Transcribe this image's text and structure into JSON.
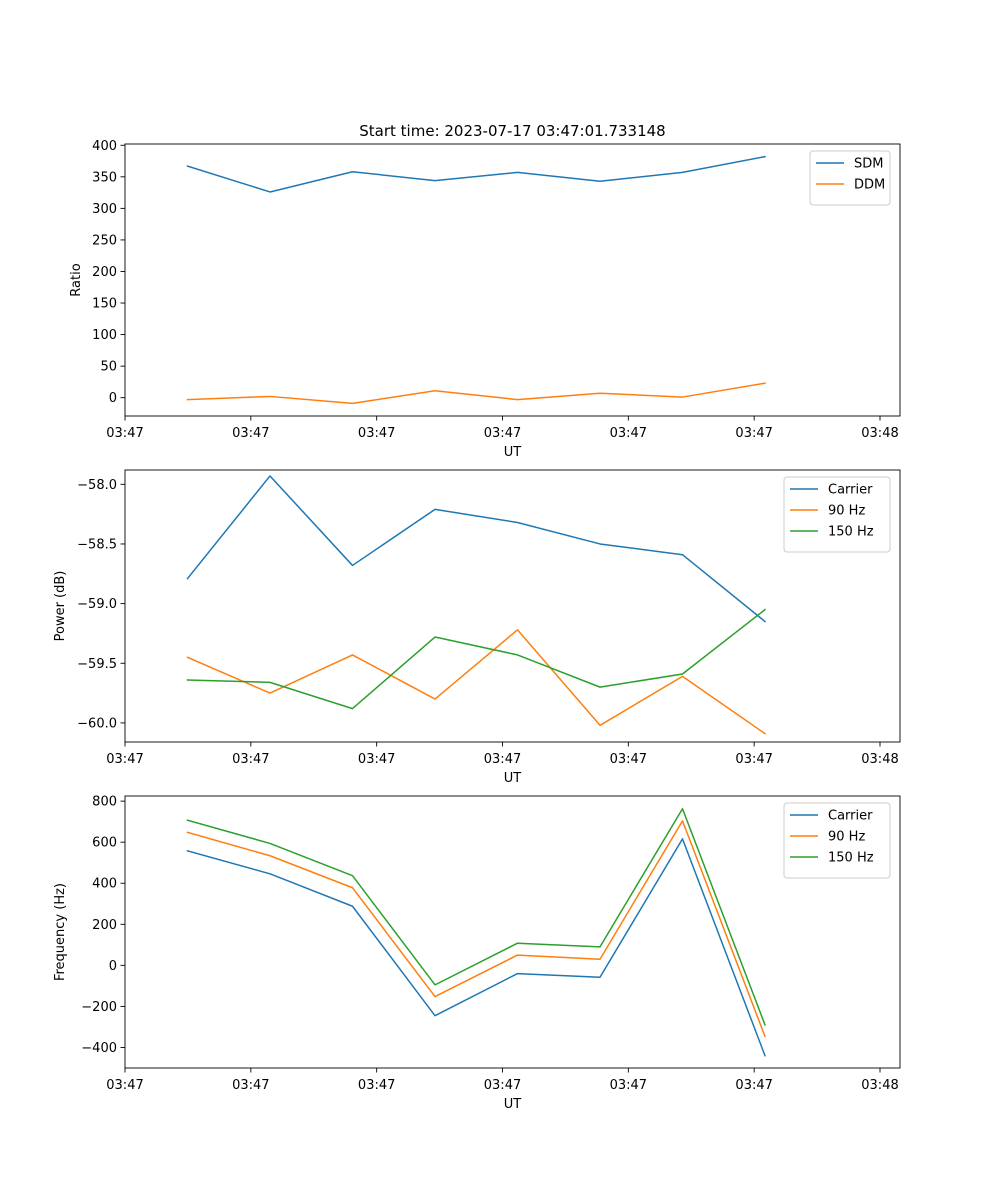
{
  "title": "Start time: 2023-07-17 03:47:01.733148",
  "colors": {
    "blue": "#1f77b4",
    "orange": "#ff7f0e",
    "green": "#2ca02c"
  },
  "chart_data": [
    {
      "type": "line",
      "title": "Start time: 2023-07-17 03:47:01.733148",
      "xlabel": "UT",
      "ylabel": "Ratio",
      "xlim": [
        0,
        9.3
      ],
      "ylim": [
        -29,
        402
      ],
      "x": [
        0.75,
        1.74,
        2.73,
        3.72,
        4.71,
        5.7,
        6.69,
        7.68
      ],
      "xtick_positions": [
        0,
        1.51,
        3.02,
        4.53,
        6.04,
        7.55,
        9.06
      ],
      "xtick_labels": [
        "03:47",
        "03:47",
        "03:47",
        "03:47",
        "03:47",
        "03:47",
        "03:48"
      ],
      "ytick_values": [
        0,
        50,
        100,
        150,
        200,
        250,
        300,
        350,
        400
      ],
      "ytick_labels": [
        "0",
        "50",
        "100",
        "150",
        "200",
        "250",
        "300",
        "350",
        "400"
      ],
      "legend": "top-right",
      "series": [
        {
          "name": "SDM",
          "color": "#1f77b4",
          "values": [
            367,
            326,
            358,
            344,
            357,
            343,
            357,
            382
          ]
        },
        {
          "name": "DDM",
          "color": "#ff7f0e",
          "values": [
            -3,
            2,
            -9,
            11,
            -3,
            7,
            1,
            23
          ]
        }
      ]
    },
    {
      "type": "line",
      "title": "",
      "xlabel": "UT",
      "ylabel": "Power (dB)",
      "xlim": [
        0,
        9.3
      ],
      "ylim": [
        -60.16,
        -57.88
      ],
      "x": [
        0.75,
        1.74,
        2.73,
        3.72,
        4.71,
        5.7,
        6.69,
        7.68
      ],
      "xtick_positions": [
        0,
        1.51,
        3.02,
        4.53,
        6.04,
        7.55,
        9.06
      ],
      "xtick_labels": [
        "03:47",
        "03:47",
        "03:47",
        "03:47",
        "03:47",
        "03:47",
        "03:48"
      ],
      "ytick_values": [
        -60.0,
        -59.5,
        -59.0,
        -58.5,
        -58.0
      ],
      "ytick_labels": [
        "−60.0",
        "−59.5",
        "−59.0",
        "−58.5",
        "−58.0"
      ],
      "legend": "top-right",
      "series": [
        {
          "name": "Carrier",
          "color": "#1f77b4",
          "values": [
            -58.79,
            -57.93,
            -58.68,
            -58.21,
            -58.32,
            -58.5,
            -58.59,
            -59.15
          ]
        },
        {
          "name": "90 Hz",
          "color": "#ff7f0e",
          "values": [
            -59.45,
            -59.75,
            -59.43,
            -59.8,
            -59.22,
            -60.02,
            -59.61,
            -60.09
          ]
        },
        {
          "name": "150 Hz",
          "color": "#2ca02c",
          "values": [
            -59.64,
            -59.66,
            -59.88,
            -59.28,
            -59.43,
            -59.7,
            -59.59,
            -59.05
          ]
        }
      ]
    },
    {
      "type": "line",
      "title": "",
      "xlabel": "UT",
      "ylabel": "Frequency (Hz)",
      "xlim": [
        0,
        9.3
      ],
      "ylim": [
        -500,
        825
      ],
      "x": [
        0.75,
        1.74,
        2.73,
        3.72,
        4.71,
        5.7,
        6.69,
        7.68
      ],
      "xtick_positions": [
        0,
        1.51,
        3.02,
        4.53,
        6.04,
        7.55,
        9.06
      ],
      "xtick_labels": [
        "03:47",
        "03:47",
        "03:47",
        "03:47",
        "03:47",
        "03:47",
        "03:48"
      ],
      "ytick_values": [
        -400,
        -200,
        0,
        200,
        400,
        600,
        800
      ],
      "ytick_labels": [
        "−400",
        "−200",
        "0",
        "200",
        "400",
        "600",
        "800"
      ],
      "legend": "top-right",
      "series": [
        {
          "name": "Carrier",
          "color": "#1f77b4",
          "values": [
            558,
            446,
            288,
            -245,
            -40,
            -58,
            616,
            -440
          ]
        },
        {
          "name": "90 Hz",
          "color": "#ff7f0e",
          "values": [
            648,
            534,
            378,
            -152,
            50,
            30,
            704,
            -346
          ]
        },
        {
          "name": "150 Hz",
          "color": "#2ca02c",
          "values": [
            707,
            594,
            437,
            -95,
            108,
            90,
            763,
            -290
          ]
        }
      ]
    }
  ]
}
